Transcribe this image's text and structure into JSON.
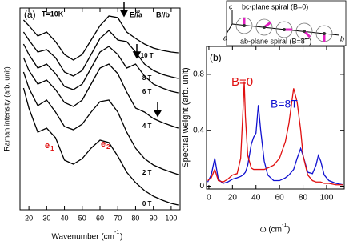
{
  "chart_data": [
    {
      "type": "line",
      "panel_label": "(a)",
      "temperature": "T=10K",
      "field_e": "E",
      "field_e_sup": "ω",
      "field_e_rest": "//a",
      "field_b": "B//b",
      "xlabel": "Wavenumber (cm",
      "xlabel_sup": "-1",
      "xlabel_end": ")",
      "ylabel": "Raman intensity (arb. unit)",
      "peak_labels": [
        {
          "text": "e",
          "sub": "1"
        },
        {
          "text": "e",
          "sub": "2"
        }
      ],
      "x": [
        17,
        20,
        25,
        30,
        35,
        40,
        45,
        50,
        55,
        60,
        65,
        70,
        75,
        80,
        85,
        90,
        95,
        100,
        104
      ],
      "series": [
        {
          "name": "0 T",
          "color": "#000000",
          "values": [
            152,
            127,
            97,
            102,
            90,
            62,
            57,
            64,
            77,
            87,
            84,
            67,
            47,
            34,
            24,
            17,
            12,
            8,
            6
          ]
        },
        {
          "name": "2 T",
          "color": "#000000",
          "values": [
            172,
            152,
            130,
            137,
            122,
            104,
            100,
            107,
            122,
            135,
            137,
            122,
            97,
            77,
            64,
            56,
            51,
            47,
            44
          ]
        },
        {
          "name": "4 T",
          "color": "#000000",
          "values": [
            190,
            174,
            157,
            162,
            150,
            134,
            129,
            137,
            157,
            177,
            182,
            170,
            147,
            127,
            122,
            114,
            109,
            105,
            102
          ]
        },
        {
          "name": "6 T",
          "color": "#000000",
          "values": [
            207,
            194,
            177,
            182,
            170,
            154,
            150,
            157,
            177,
            197,
            204,
            194,
            177,
            182,
            167,
            157,
            152,
            148,
            146
          ]
        },
        {
          "name": "8 T",
          "color": "#000000",
          "values": [
            222,
            212,
            197,
            200,
            190,
            172,
            167,
            174,
            194,
            214,
            224,
            212,
            210,
            197,
            182,
            174,
            169,
            166,
            164
          ]
        },
        {
          "name": "10 T",
          "color": "#000000",
          "values": [
            237,
            230,
            217,
            222,
            210,
            194,
            187,
            194,
            212,
            230,
            242,
            240,
            222,
            214,
            207,
            202,
            199,
            197,
            196
          ]
        }
      ],
      "xlim": [
        15,
        105
      ],
      "xticks": [
        20,
        30,
        40,
        50,
        60,
        70,
        80,
        90,
        100
      ],
      "ylim": [
        0,
        252
      ]
    },
    {
      "type": "line",
      "panel_label": "(b)",
      "xlabel": "ω (cm",
      "xlabel_sup": "-1",
      "xlabel_end": ")",
      "ylabel": "Spectral weight  (arb. unit)",
      "inset": {
        "c_axis": "c",
        "top_label": "bc-plane spiral (B=0)",
        "b_axis": "b",
        "a_axis": "a",
        "bottom_label": "ab-plane spiral (B=8T)"
      },
      "x": [
        -1,
        2,
        5,
        8,
        12,
        16,
        20,
        24,
        27,
        29,
        30,
        31,
        33,
        36,
        38,
        40,
        42,
        44,
        47,
        50,
        55,
        60,
        65,
        68,
        72,
        75,
        78,
        80,
        84,
        88,
        91,
        93,
        95,
        98,
        102,
        108,
        114
      ],
      "series": [
        {
          "name": "B=0",
          "color": "#e01010",
          "values": [
            0.04,
            0.06,
            0.12,
            0.04,
            0.03,
            0.05,
            0.08,
            0.09,
            0.2,
            0.55,
            0.75,
            0.5,
            0.22,
            0.13,
            0.12,
            0.12,
            0.12,
            0.12,
            0.12,
            0.13,
            0.15,
            0.2,
            0.32,
            0.45,
            0.7,
            0.6,
            0.4,
            0.22,
            0.08,
            0.04,
            0.03,
            0.03,
            0.03,
            0.02,
            0.02,
            0.01,
            0.01
          ]
        },
        {
          "name": "B=8T",
          "color": "#1010d0",
          "values": [
            0.03,
            0.08,
            0.2,
            0.05,
            0.02,
            0.03,
            0.05,
            0.06,
            0.07,
            0.08,
            0.09,
            0.1,
            0.15,
            0.3,
            0.35,
            0.38,
            0.58,
            0.4,
            0.18,
            0.08,
            0.04,
            0.04,
            0.06,
            0.08,
            0.12,
            0.2,
            0.27,
            0.22,
            0.1,
            0.09,
            0.15,
            0.22,
            0.18,
            0.08,
            0.04,
            0.02,
            0.01
          ]
        }
      ],
      "xlim": [
        -2,
        115
      ],
      "xticks": [
        0,
        20,
        40,
        60,
        80,
        100
      ],
      "ylim": [
        -0.02,
        1.0
      ],
      "yticks": [
        0,
        0.4,
        0.8
      ]
    }
  ]
}
